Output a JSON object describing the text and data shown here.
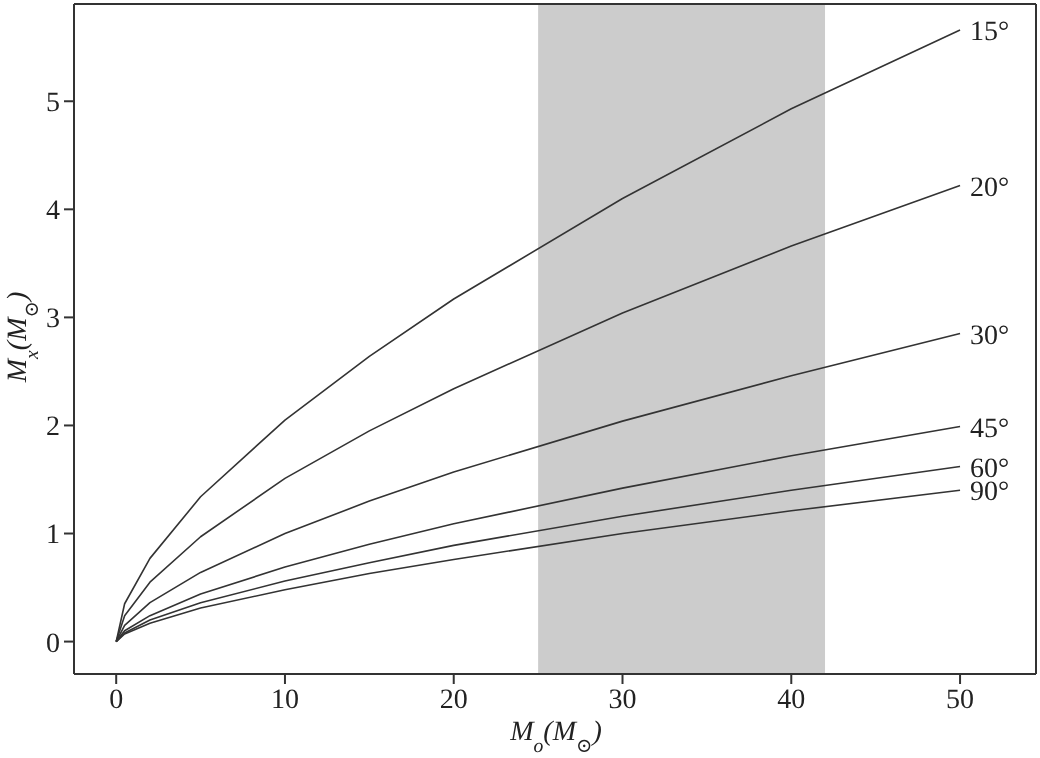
{
  "chart_data": {
    "type": "line",
    "xlabel": "M$_{o}$(M$_{⊙}$)",
    "ylabel": "M$_{x}$(M$_{⊙}$)",
    "x": [
      0,
      0.5,
      2,
      5,
      10,
      15,
      20,
      30,
      40,
      50
    ],
    "series": [
      {
        "name": "15°",
        "color": "#333333",
        "values": [
          0,
          0.35,
          0.77,
          1.34,
          2.05,
          2.64,
          3.17,
          4.1,
          4.93,
          5.66
        ]
      },
      {
        "name": "20°",
        "color": "#333333",
        "values": [
          0,
          0.24,
          0.55,
          0.97,
          1.51,
          1.95,
          2.34,
          3.04,
          3.66,
          4.22
        ]
      },
      {
        "name": "30°",
        "color": "#333333",
        "values": [
          0,
          0.15,
          0.36,
          0.64,
          1.0,
          1.3,
          1.57,
          2.04,
          2.46,
          2.85
        ]
      },
      {
        "name": "45°",
        "color": "#333333",
        "values": [
          0,
          0.1,
          0.24,
          0.44,
          0.69,
          0.9,
          1.09,
          1.42,
          1.72,
          1.99
        ]
      },
      {
        "name": "60°",
        "color": "#333333",
        "values": [
          0,
          0.08,
          0.2,
          0.36,
          0.56,
          0.73,
          0.89,
          1.16,
          1.4,
          1.62
        ]
      },
      {
        "name": "90°",
        "color": "#333333",
        "values": [
          0,
          0.07,
          0.17,
          0.31,
          0.48,
          0.63,
          0.76,
          1.0,
          1.21,
          1.4
        ]
      }
    ],
    "xlim": [
      -2.5,
      54.5
    ],
    "ylim": [
      -0.3,
      5.9
    ],
    "xticks": [
      0,
      10,
      20,
      30,
      40,
      50
    ],
    "yticks": [
      0,
      1,
      2,
      3,
      4,
      5
    ],
    "bands": [
      {
        "axis": "x",
        "from": 25,
        "to": 42,
        "color": "#cccccc"
      }
    ],
    "marker": "none"
  }
}
